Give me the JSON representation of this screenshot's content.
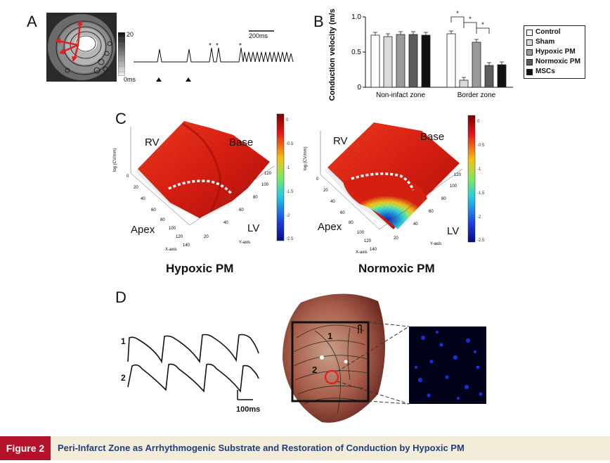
{
  "panels": {
    "a": "A",
    "b": "B",
    "c": "C",
    "d": "D"
  },
  "panel_a": {
    "scale_top": "20",
    "scale_bottom": "0ms",
    "time_scale": "200ms",
    "stars": [
      "*",
      "*",
      "*"
    ]
  },
  "chart_data": {
    "type": "bar",
    "ylabel": "Conduction velocity (m/s)",
    "ylim": [
      0,
      1.0
    ],
    "yticks": [
      "0",
      "0.5",
      "1.0"
    ],
    "groups": [
      "Non-infact zone",
      "Border zone"
    ],
    "series": [
      {
        "name": "Control",
        "color": "#ffffff",
        "values": [
          0.74,
          0.76
        ]
      },
      {
        "name": "Sham",
        "color": "#d9d9d9",
        "values": [
          0.72,
          0.1
        ]
      },
      {
        "name": "Hypoxic PM",
        "color": "#9a9a9a",
        "values": [
          0.75,
          0.64
        ]
      },
      {
        "name": "Normoxic PM",
        "color": "#5c5c5c",
        "values": [
          0.75,
          0.31
        ]
      },
      {
        "name": "MSCs",
        "color": "#111111",
        "values": [
          0.74,
          0.32
        ]
      }
    ],
    "significance": [
      "*",
      "*",
      "*"
    ],
    "legend_position": "right"
  },
  "panel_c": {
    "left": {
      "rv": "RV",
      "base": "Base",
      "apex": "Apex",
      "lv": "LV",
      "title": "Hypoxic PM"
    },
    "right": {
      "rv": "RV",
      "base": "Base",
      "apex": "Apex",
      "lv": "LV",
      "title": "Normoxic PM"
    },
    "colorbar_ticks": [
      "0",
      "-0.5",
      "-1",
      "-1.5",
      "-2",
      "-2.5"
    ]
  },
  "panel_d": {
    "trace1": "1",
    "trace2": "2",
    "time_scale": "100ms",
    "map_label1": "1",
    "map_label2": "2"
  },
  "caption": {
    "tag": "Figure 2",
    "text": "Peri-Infarct Zone as Arrhythmogenic Substrate and Restoration of Conduction by Hypoxic PM"
  }
}
